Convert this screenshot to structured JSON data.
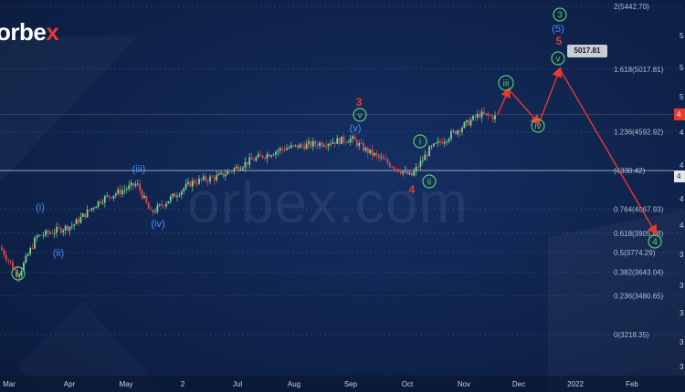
{
  "brand": {
    "logo_main": "orbe",
    "logo_accent": "x",
    "watermark": "orbex.com"
  },
  "colors": {
    "up": "#7cd392",
    "down": "#e24a4a",
    "fib": "#b2bccc",
    "green": "#59c96c",
    "blue": "#4a8cff",
    "red": "#e8392f",
    "arrow": "#e8392f"
  },
  "chart_data": {
    "type": "candlestick",
    "x_ticks": [
      "Mar",
      "Apr",
      "May",
      "2",
      "Jul",
      "Aug",
      "Sep",
      "Oct",
      "Nov",
      "Dec",
      "2022",
      "Feb"
    ],
    "fib_levels": [
      {
        "ratio": "2",
        "price": 5442.7
      },
      {
        "ratio": "1.618",
        "price": 5017.81
      },
      {
        "ratio": "1.236",
        "price": 4592.92
      },
      {
        "ratio": "1",
        "price": 4330.42
      },
      {
        "ratio": "0.764",
        "price": 4067.93
      },
      {
        "ratio": "0.618",
        "price": 3905.68
      },
      {
        "ratio": "0.5",
        "price": 3774.29
      },
      {
        "ratio": "0.382",
        "price": 3643.04
      },
      {
        "ratio": "0.236",
        "price": 3480.65
      },
      {
        "ratio": "0",
        "price": 3218.35
      }
    ],
    "fib_label_texts": [
      "2(5442.70)",
      "1.618(5017.81)",
      "1.236(4592.92)",
      "(4330.42)",
      "0.764(4067.93)",
      "0.618(3905.68)",
      "0.5(3774.29)",
      "0.382(3643.04)",
      "0.236(3480.65)",
      "0(3218.35)"
    ],
    "horizontal_lines": [
      4710,
      4330
    ],
    "price_label": "5017.81",
    "right_tags": [
      "4",
      "4"
    ],
    "series_path": [
      [
        "Mar",
        3810
      ],
      [
        "Mar",
        3620
      ],
      [
        "Mar",
        3880
      ],
      [
        "Apr",
        3960
      ],
      [
        "Apr",
        4130
      ],
      [
        "May",
        4240
      ],
      [
        "May",
        4040
      ],
      [
        "2",
        4250
      ],
      [
        "Jul",
        4290
      ],
      [
        "Jul",
        4400
      ],
      [
        "Aug",
        4480
      ],
      [
        "Sep",
        4545
      ],
      [
        "Sep",
        4470
      ],
      [
        "Oct",
        4290
      ],
      [
        "Oct",
        4470
      ],
      [
        "Nov",
        4710
      ],
      [
        "Nov",
        4690
      ]
    ],
    "projection_path": [
      [
        4710
      ],
      [
        4880
      ],
      [
        4650
      ],
      [
        5017.81
      ],
      [
        3905
      ]
    ],
    "wave_labels": [
      {
        "text": "iv",
        "style": "green-circle"
      },
      {
        "text": "(i)",
        "style": "blue"
      },
      {
        "text": "(ii)",
        "style": "blue"
      },
      {
        "text": "(iii)",
        "style": "blue"
      },
      {
        "text": "(iv)",
        "style": "blue"
      },
      {
        "text": "(v)",
        "style": "blue"
      },
      {
        "text": "v",
        "style": "green-circle"
      },
      {
        "text": "3",
        "style": "red"
      },
      {
        "text": "4",
        "style": "red"
      },
      {
        "text": "i",
        "style": "green-circle"
      },
      {
        "text": "ii",
        "style": "green-circle"
      },
      {
        "text": "iii",
        "style": "green-circle"
      },
      {
        "text": "iv",
        "style": "green-circle"
      },
      {
        "text": "v",
        "style": "green-circle"
      },
      {
        "text": "5",
        "style": "red"
      },
      {
        "text": "(5)",
        "style": "blue"
      },
      {
        "text": "3",
        "style": "green-circle"
      },
      {
        "text": "4",
        "style": "green-circle"
      }
    ],
    "right_axis_fragments": [
      "5",
      "5",
      "5",
      "4",
      "4",
      "4",
      "4",
      "3",
      "3",
      "3",
      "3",
      "3"
    ]
  }
}
